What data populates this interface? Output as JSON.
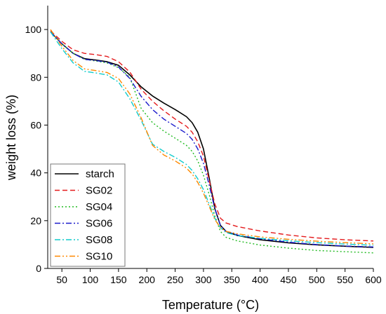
{
  "chart_data": {
    "type": "line",
    "title": "",
    "xlabel": "Temperature (°C)",
    "ylabel": "weight loss (%)",
    "xlim": [
      25,
      600
    ],
    "ylim": [
      0,
      110
    ],
    "x_ticks": [
      50,
      100,
      150,
      200,
      250,
      300,
      350,
      400,
      450,
      500,
      550,
      600
    ],
    "y_ticks": [
      0,
      20,
      40,
      60,
      80,
      100
    ],
    "grid": false,
    "legend_position": "bottom-left",
    "series": [
      {
        "name": "starch",
        "color": "#000000",
        "dash": "solid",
        "x": [
          30,
          50,
          70,
          90,
          110,
          130,
          150,
          170,
          190,
          210,
          230,
          250,
          270,
          280,
          290,
          300,
          310,
          320,
          330,
          340,
          360,
          400,
          450,
          500,
          550,
          600
        ],
        "y": [
          99,
          94,
          90,
          87.8,
          87.2,
          86.5,
          85,
          81,
          76,
          72.2,
          69.2,
          66.5,
          63.5,
          61,
          57,
          50,
          38,
          25,
          18,
          15.5,
          13.8,
          12,
          10.7,
          9.9,
          9.3,
          8.8
        ]
      },
      {
        "name": "SG02",
        "color": "#e41a1c",
        "dash": "dashed",
        "x": [
          30,
          50,
          70,
          90,
          110,
          130,
          150,
          170,
          190,
          210,
          230,
          250,
          270,
          280,
          290,
          300,
          310,
          320,
          330,
          340,
          360,
          400,
          450,
          500,
          550,
          600
        ],
        "y": [
          99.5,
          95,
          91.5,
          90,
          89.5,
          88.7,
          86.5,
          82.2,
          75,
          70,
          66,
          62.5,
          59.5,
          57,
          53,
          47,
          37,
          27,
          21,
          19,
          17.5,
          15.7,
          14,
          12.8,
          12,
          11.5
        ]
      },
      {
        "name": "SG04",
        "color": "#22bb22",
        "dash": "dotted",
        "x": [
          30,
          50,
          70,
          90,
          110,
          130,
          150,
          170,
          190,
          210,
          230,
          250,
          270,
          280,
          290,
          300,
          310,
          320,
          330,
          340,
          360,
          400,
          450,
          500,
          550,
          600
        ],
        "y": [
          99,
          94,
          90,
          87.5,
          86.8,
          86,
          84,
          80,
          67,
          61,
          57.5,
          54.5,
          51.5,
          49,
          45,
          39,
          31,
          22,
          15.5,
          13,
          11.5,
          9.8,
          8.5,
          7.5,
          7,
          6.5
        ]
      },
      {
        "name": "SG06",
        "color": "#1a1acc",
        "dash": "dashdot",
        "x": [
          30,
          50,
          70,
          90,
          110,
          130,
          150,
          170,
          190,
          210,
          230,
          250,
          270,
          280,
          290,
          300,
          310,
          320,
          330,
          340,
          360,
          400,
          450,
          500,
          550,
          600
        ],
        "y": [
          99,
          94,
          90,
          87.5,
          87,
          86.3,
          84.3,
          79.5,
          72,
          66.5,
          62.5,
          59.5,
          56.5,
          54,
          50,
          44,
          35,
          25,
          18,
          15.5,
          14,
          12.4,
          11,
          10,
          9.4,
          9
        ]
      },
      {
        "name": "SG08",
        "color": "#11cccc",
        "dash": "dashdot",
        "x": [
          30,
          50,
          70,
          90,
          110,
          130,
          150,
          170,
          190,
          210,
          230,
          250,
          270,
          280,
          290,
          300,
          310,
          320,
          330,
          340,
          360,
          400,
          450,
          500,
          550,
          600
        ],
        "y": [
          99,
          92,
          86,
          82.5,
          81.8,
          81,
          78,
          71,
          62,
          52,
          49,
          46.5,
          43.5,
          41,
          37.5,
          33,
          27,
          21,
          17,
          15,
          13.8,
          12.6,
          11.6,
          10.8,
          10.2,
          9.7
        ]
      },
      {
        "name": "SG10",
        "color": "#ff8800",
        "dash": "dashdotdot",
        "x": [
          30,
          50,
          70,
          90,
          110,
          130,
          150,
          170,
          190,
          210,
          230,
          250,
          270,
          280,
          290,
          300,
          310,
          320,
          330,
          340,
          360,
          400,
          450,
          500,
          550,
          600
        ],
        "y": [
          100,
          93,
          87,
          83.5,
          82.8,
          82,
          79.5,
          73,
          63,
          51.5,
          47.5,
          45,
          42,
          39.5,
          36,
          31.5,
          26,
          20.5,
          17,
          15.5,
          14.5,
          13.2,
          12.2,
          11.4,
          10.8,
          10.3
        ]
      }
    ]
  }
}
